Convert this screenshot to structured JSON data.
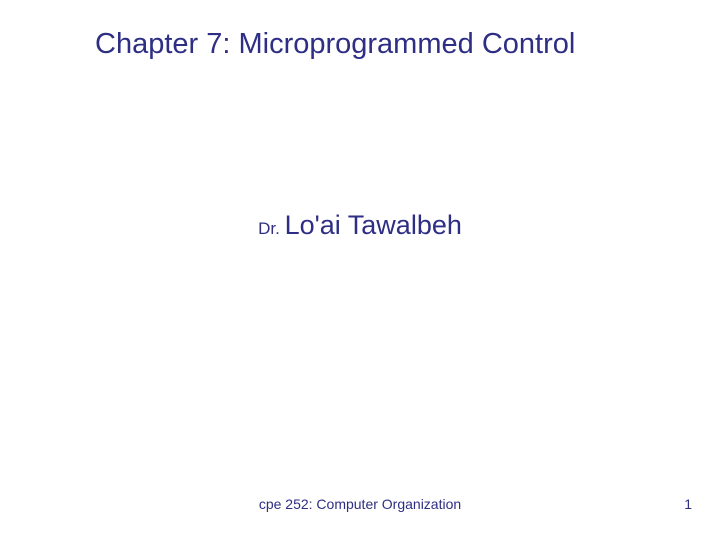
{
  "slide": {
    "title": "Chapter 7: Microprogrammed Control",
    "author_prefix": "Dr. ",
    "author_name": "Lo'ai Tawalbeh",
    "footer_text": "cpe 252: Computer Organization",
    "slide_number": "1"
  },
  "style": {
    "text_color": "#2e2e85",
    "background_color": "#ffffff",
    "title_fontsize": 29,
    "author_prefix_fontsize": 17,
    "author_name_fontsize": 27,
    "footer_fontsize": 14
  }
}
